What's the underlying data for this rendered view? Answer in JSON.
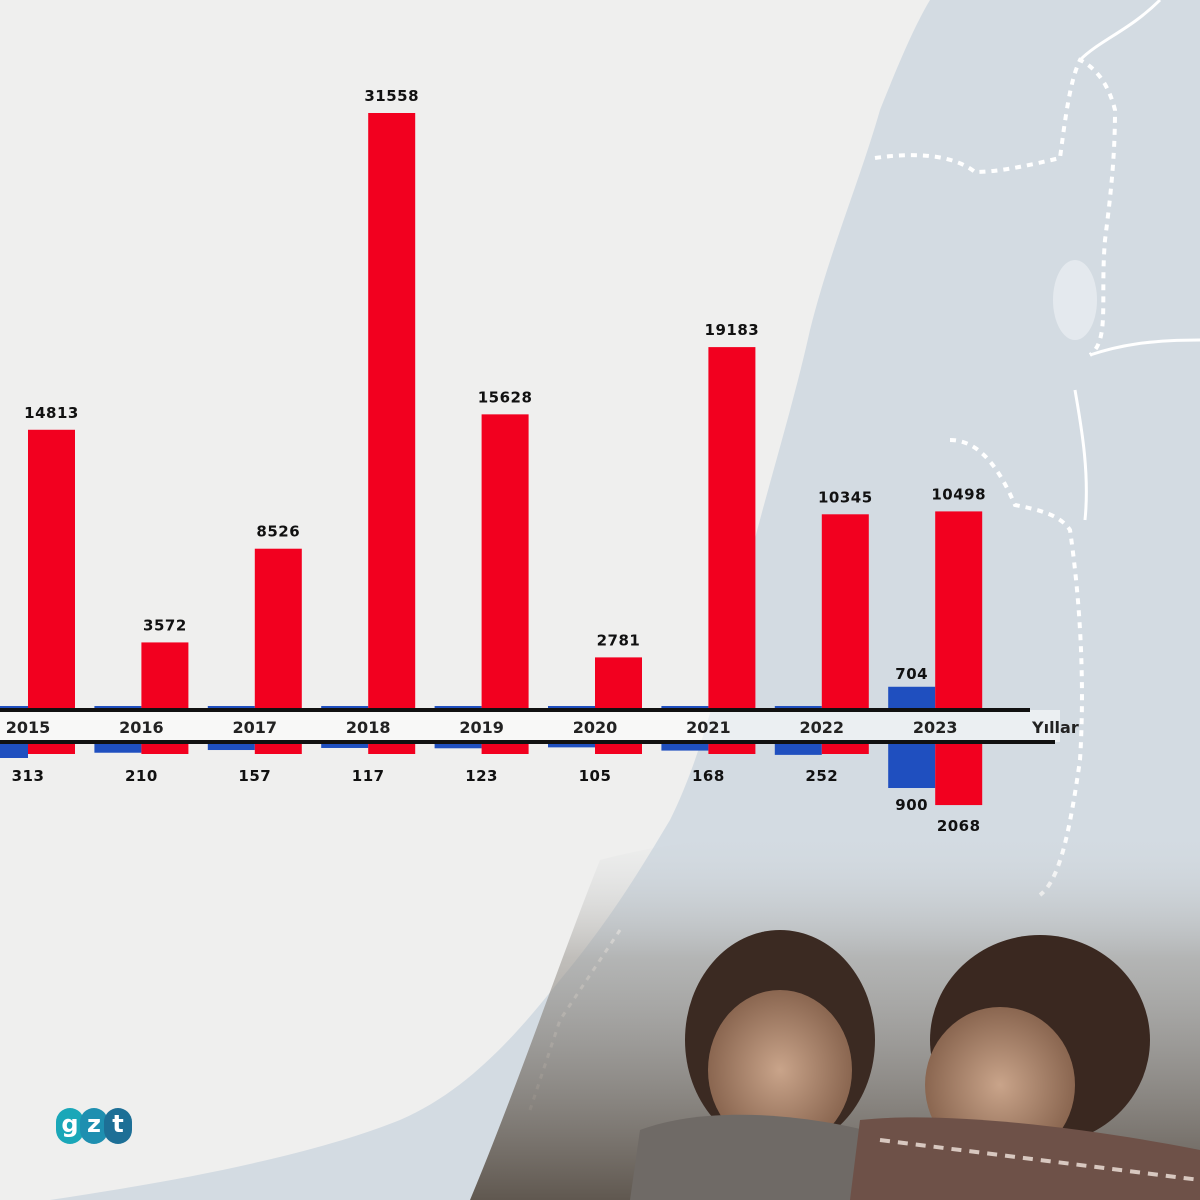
{
  "colors": {
    "positive": "#f2001f",
    "negative_blue": "#1f4fbf",
    "map": "#d3dbe2",
    "background": "#efefee"
  },
  "brand": {
    "logo_letters": [
      "g",
      "z",
      "t"
    ]
  },
  "chart_data": {
    "type": "bar",
    "xlabel": "Yıllar",
    "categories": [
      "2015",
      "2016",
      "2017",
      "2018",
      "2019",
      "2020",
      "2021",
      "2022",
      "2023"
    ],
    "series": [
      {
        "color": "red",
        "direction": "up",
        "values": [
          14813,
          3572,
          8526,
          31558,
          15628,
          2781,
          19183,
          10345,
          10498
        ]
      },
      {
        "color": "blue",
        "direction": "up",
        "values": [
          null,
          null,
          null,
          null,
          null,
          null,
          null,
          null,
          704
        ]
      },
      {
        "color": "red",
        "direction": "down",
        "values": [
          null,
          null,
          null,
          null,
          null,
          null,
          null,
          null,
          2068
        ]
      },
      {
        "color": "blue",
        "direction": "down",
        "values": [
          313,
          210,
          157,
          117,
          123,
          105,
          168,
          252,
          900
        ]
      }
    ],
    "grid": false,
    "legend": "none"
  }
}
